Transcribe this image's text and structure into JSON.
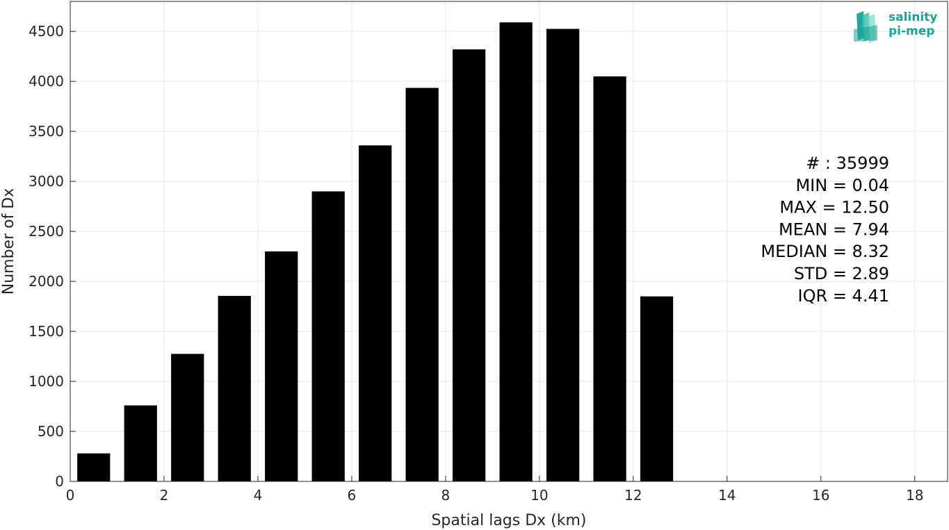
{
  "chart_data": {
    "type": "bar",
    "xlabel": "Spatial lags Dx (km)",
    "ylabel": "Number of Dx",
    "xlim": [
      0,
      18.7
    ],
    "ylim": [
      0,
      4800
    ],
    "xticks": [
      0,
      2,
      4,
      6,
      8,
      10,
      12,
      14,
      16,
      18
    ],
    "yticks": [
      0,
      500,
      1000,
      1500,
      2000,
      2500,
      3000,
      3500,
      4000,
      4500
    ],
    "grid": true,
    "bar_width": 0.7,
    "x": [
      0.5,
      1.5,
      2.5,
      3.5,
      4.5,
      5.5,
      6.5,
      7.5,
      8.5,
      9.5,
      10.5,
      11.5,
      12.5
    ],
    "values": [
      280,
      760,
      1275,
      1855,
      2300,
      2900,
      3360,
      3935,
      4320,
      4590,
      4525,
      4050,
      1850
    ],
    "bar_color": "#000000",
    "stats_box": {
      "placement": "right",
      "lines": [
        "# : 35999",
        "MIN = 0.04",
        "MAX =  12.50",
        "MEAN = 7.94",
        "MEDIAN = 8.32",
        "STD = 2.89",
        "IQR = 4.41"
      ]
    }
  },
  "logo": {
    "line1": "salinity",
    "line2": "pi-mep",
    "color": "#19a394"
  }
}
